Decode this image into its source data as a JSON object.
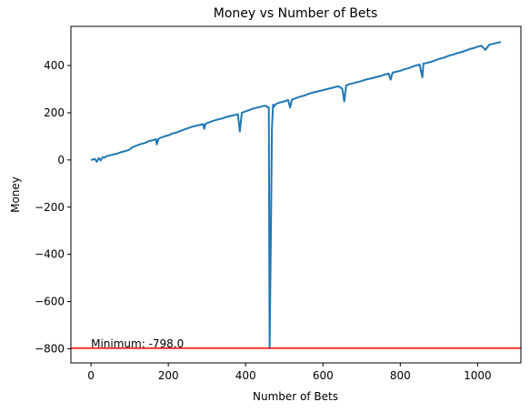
{
  "chart_data": {
    "type": "line",
    "title": "Money vs Number of Bets",
    "xlabel": "Number of Bets",
    "ylabel": "Money",
    "xlim": [
      -52,
      1112
    ],
    "ylim": [
      -860,
      566
    ],
    "xticks": [
      0,
      200,
      400,
      600,
      800,
      1000
    ],
    "yticks": [
      -800,
      -600,
      -400,
      -200,
      0,
      200,
      400
    ],
    "xtick_labels": [
      "0",
      "200",
      "400",
      "600",
      "800",
      "1000"
    ],
    "ytick_labels": [
      "−800",
      "−600",
      "−400",
      "−200",
      "0",
      "200",
      "400"
    ],
    "grid": false,
    "colors": {
      "series": "#1f77b4",
      "min_line": "#ff0000",
      "axes": "#000000"
    },
    "series": [
      {
        "x": [
          0,
          10,
          15,
          20,
          25,
          30,
          35,
          40,
          50,
          60,
          70,
          80,
          90,
          100,
          105,
          110,
          120,
          130,
          140,
          150,
          160,
          168,
          170,
          175,
          180,
          190,
          200,
          210,
          220,
          230,
          240,
          250,
          260,
          270,
          280,
          290,
          293,
          296,
          300,
          310,
          320,
          330,
          340,
          350,
          360,
          370,
          380,
          385,
          390,
          400,
          410,
          420,
          430,
          440,
          450,
          460,
          462,
          466,
          468,
          471,
          474,
          476,
          480,
          490,
          500,
          510,
          515,
          520,
          530,
          540,
          550,
          560,
          570,
          580,
          590,
          600,
          610,
          620,
          630,
          640,
          650,
          655,
          660,
          670,
          680,
          690,
          700,
          710,
          720,
          730,
          740,
          750,
          760,
          770,
          775,
          780,
          790,
          800,
          810,
          820,
          830,
          840,
          850,
          857,
          860,
          870,
          880,
          890,
          900,
          910,
          920,
          930,
          940,
          950,
          960,
          970,
          980,
          990,
          1000,
          1010,
          1020,
          1030,
          1040,
          1050,
          1060
        ],
        "y": [
          0,
          4,
          -8,
          8,
          -2,
          12,
          10,
          16,
          20,
          24,
          28,
          34,
          38,
          44,
          52,
          56,
          62,
          68,
          72,
          80,
          84,
          88,
          66,
          90,
          94,
          100,
          104,
          112,
          116,
          122,
          128,
          134,
          140,
          144,
          148,
          152,
          132,
          152,
          156,
          162,
          168,
          172,
          176,
          182,
          186,
          190,
          194,
          120,
          200,
          206,
          212,
          218,
          222,
          226,
          230,
          222,
          -798,
          -200,
          130,
          234,
          226,
          234,
          238,
          244,
          248,
          254,
          222,
          256,
          262,
          268,
          272,
          278,
          284,
          288,
          292,
          296,
          300,
          304,
          308,
          312,
          302,
          248,
          316,
          322,
          326,
          330,
          334,
          340,
          344,
          348,
          352,
          356,
          362,
          366,
          340,
          370,
          374,
          378,
          384,
          388,
          394,
          400,
          404,
          350,
          408,
          412,
          416,
          422,
          428,
          432,
          438,
          444,
          448,
          454,
          458,
          464,
          470,
          474,
          480,
          484,
          466,
          488,
          492,
          496,
          500
        ]
      }
    ],
    "min_line": {
      "y": -798.0,
      "label": "Minimum: -798.0"
    }
  }
}
